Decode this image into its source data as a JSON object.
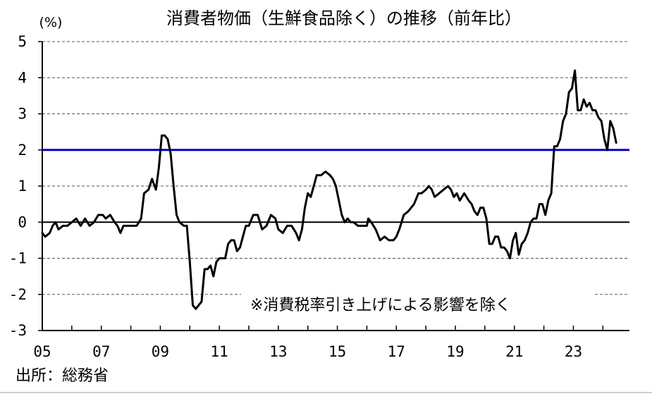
{
  "chart_data": {
    "type": "line",
    "title": "消費者物価（生鮮食品除く）の推移（前年比）",
    "unit_label": "(%)",
    "note": "※消費税率引き上げによる影響を除く",
    "source": "出所：総務省",
    "ylim": [
      -3,
      5
    ],
    "y_ticks": [
      5,
      4,
      3,
      2,
      1,
      0,
      -1,
      -2,
      -3
    ],
    "x_range": [
      2005.0,
      2024.9
    ],
    "x_ticks": [
      {
        "label": "05",
        "value": 2005
      },
      {
        "label": "07",
        "value": 2007
      },
      {
        "label": "09",
        "value": 2009
      },
      {
        "label": "11",
        "value": 2011
      },
      {
        "label": "13",
        "value": 2013
      },
      {
        "label": "15",
        "value": 2015
      },
      {
        "label": "17",
        "value": 2017
      },
      {
        "label": "19",
        "value": 2019
      },
      {
        "label": "21",
        "value": 2021
      },
      {
        "label": "23",
        "value": 2023
      }
    ],
    "grid": "horizontal dashed",
    "zero_line_color": "#000000",
    "target_line": {
      "value": 2,
      "color": "#0000cc"
    },
    "series": [
      {
        "color": "#000000",
        "points": [
          [
            2005.0,
            -0.3
          ],
          [
            2005.1,
            -0.4
          ],
          [
            2005.25,
            -0.3
          ],
          [
            2005.35,
            -0.1
          ],
          [
            2005.45,
            0.0
          ],
          [
            2005.55,
            -0.2
          ],
          [
            2005.7,
            -0.1
          ],
          [
            2005.85,
            -0.1
          ],
          [
            2006.0,
            0.0
          ],
          [
            2006.15,
            0.1
          ],
          [
            2006.3,
            -0.1
          ],
          [
            2006.45,
            0.1
          ],
          [
            2006.6,
            -0.1
          ],
          [
            2006.75,
            0.0
          ],
          [
            2006.9,
            0.2
          ],
          [
            2007.05,
            0.2
          ],
          [
            2007.15,
            0.1
          ],
          [
            2007.3,
            0.2
          ],
          [
            2007.45,
            0.0
          ],
          [
            2007.55,
            -0.1
          ],
          [
            2007.65,
            -0.3
          ],
          [
            2007.75,
            -0.1
          ],
          [
            2007.9,
            -0.1
          ],
          [
            2008.05,
            -0.1
          ],
          [
            2008.2,
            -0.1
          ],
          [
            2008.35,
            0.1
          ],
          [
            2008.45,
            0.8
          ],
          [
            2008.6,
            0.9
          ],
          [
            2008.72,
            1.2
          ],
          [
            2008.85,
            0.9
          ],
          [
            2008.95,
            1.5
          ],
          [
            2009.05,
            2.4
          ],
          [
            2009.15,
            2.4
          ],
          [
            2009.25,
            2.3
          ],
          [
            2009.35,
            1.9
          ],
          [
            2009.45,
            1.0
          ],
          [
            2009.55,
            0.2
          ],
          [
            2009.65,
            0.0
          ],
          [
            2009.8,
            -0.1
          ],
          [
            2009.9,
            -0.1
          ],
          [
            2010.0,
            -1.1
          ],
          [
            2010.1,
            -2.3
          ],
          [
            2010.2,
            -2.4
          ],
          [
            2010.3,
            -2.3
          ],
          [
            2010.4,
            -2.2
          ],
          [
            2010.5,
            -1.3
          ],
          [
            2010.6,
            -1.3
          ],
          [
            2010.7,
            -1.2
          ],
          [
            2010.8,
            -1.5
          ],
          [
            2010.9,
            -1.1
          ],
          [
            2011.0,
            -1.0
          ],
          [
            2011.1,
            -1.0
          ],
          [
            2011.2,
            -1.0
          ],
          [
            2011.3,
            -0.6
          ],
          [
            2011.4,
            -0.5
          ],
          [
            2011.5,
            -0.5
          ],
          [
            2011.6,
            -0.8
          ],
          [
            2011.7,
            -0.7
          ],
          [
            2011.8,
            -0.4
          ],
          [
            2011.9,
            -0.1
          ],
          [
            2012.0,
            -0.1
          ],
          [
            2012.15,
            0.2
          ],
          [
            2012.3,
            0.2
          ],
          [
            2012.45,
            -0.2
          ],
          [
            2012.6,
            -0.1
          ],
          [
            2012.75,
            0.2
          ],
          [
            2012.9,
            0.1
          ],
          [
            2013.0,
            -0.2
          ],
          [
            2013.15,
            -0.3
          ],
          [
            2013.3,
            -0.1
          ],
          [
            2013.45,
            -0.1
          ],
          [
            2013.6,
            -0.3
          ],
          [
            2013.7,
            -0.5
          ],
          [
            2013.8,
            -0.2
          ],
          [
            2013.9,
            0.4
          ],
          [
            2014.0,
            0.8
          ],
          [
            2014.1,
            0.7
          ],
          [
            2014.2,
            1.0
          ],
          [
            2014.3,
            1.3
          ],
          [
            2014.45,
            1.3
          ],
          [
            2014.6,
            1.4
          ],
          [
            2014.75,
            1.3
          ],
          [
            2014.85,
            1.2
          ],
          [
            2014.95,
            1.0
          ],
          [
            2015.05,
            0.6
          ],
          [
            2015.15,
            0.2
          ],
          [
            2015.25,
            0.0
          ],
          [
            2015.35,
            0.1
          ],
          [
            2015.45,
            0.0
          ],
          [
            2015.55,
            0.0
          ],
          [
            2015.7,
            -0.1
          ],
          [
            2015.85,
            -0.1
          ],
          [
            2016.0,
            -0.1
          ],
          [
            2016.05,
            0.1
          ],
          [
            2016.15,
            0.0
          ],
          [
            2016.3,
            -0.2
          ],
          [
            2016.45,
            -0.5
          ],
          [
            2016.6,
            -0.4
          ],
          [
            2016.75,
            -0.5
          ],
          [
            2016.9,
            -0.5
          ],
          [
            2017.0,
            -0.4
          ],
          [
            2017.1,
            -0.2
          ],
          [
            2017.25,
            0.2
          ],
          [
            2017.4,
            0.3
          ],
          [
            2017.5,
            0.4
          ],
          [
            2017.6,
            0.5
          ],
          [
            2017.75,
            0.8
          ],
          [
            2017.85,
            0.8
          ],
          [
            2018.0,
            0.9
          ],
          [
            2018.1,
            1.0
          ],
          [
            2018.2,
            0.9
          ],
          [
            2018.3,
            0.7
          ],
          [
            2018.45,
            0.8
          ],
          [
            2018.6,
            0.9
          ],
          [
            2018.75,
            1.0
          ],
          [
            2018.85,
            0.9
          ],
          [
            2018.95,
            0.7
          ],
          [
            2019.05,
            0.8
          ],
          [
            2019.15,
            0.6
          ],
          [
            2019.3,
            0.8
          ],
          [
            2019.45,
            0.6
          ],
          [
            2019.55,
            0.5
          ],
          [
            2019.65,
            0.3
          ],
          [
            2019.75,
            0.2
          ],
          [
            2019.85,
            0.4
          ],
          [
            2019.95,
            0.4
          ],
          [
            2020.05,
            0.1
          ],
          [
            2020.15,
            -0.6
          ],
          [
            2020.25,
            -0.6
          ],
          [
            2020.35,
            -0.4
          ],
          [
            2020.45,
            -0.4
          ],
          [
            2020.55,
            -0.7
          ],
          [
            2020.65,
            -0.7
          ],
          [
            2020.75,
            -0.8
          ],
          [
            2020.85,
            -1.0
          ],
          [
            2020.95,
            -0.5
          ],
          [
            2021.05,
            -0.3
          ],
          [
            2021.15,
            -0.9
          ],
          [
            2021.25,
            -0.6
          ],
          [
            2021.35,
            -0.5
          ],
          [
            2021.45,
            -0.3
          ],
          [
            2021.55,
            0.0
          ],
          [
            2021.65,
            0.1
          ],
          [
            2021.75,
            0.1
          ],
          [
            2021.85,
            0.5
          ],
          [
            2021.95,
            0.5
          ],
          [
            2022.05,
            0.2
          ],
          [
            2022.15,
            0.6
          ],
          [
            2022.25,
            0.8
          ],
          [
            2022.35,
            2.1
          ],
          [
            2022.45,
            2.1
          ],
          [
            2022.55,
            2.3
          ],
          [
            2022.65,
            2.8
          ],
          [
            2022.75,
            3.0
          ],
          [
            2022.85,
            3.6
          ],
          [
            2022.95,
            3.7
          ],
          [
            2023.05,
            4.2
          ],
          [
            2023.15,
            3.1
          ],
          [
            2023.25,
            3.1
          ],
          [
            2023.35,
            3.4
          ],
          [
            2023.45,
            3.2
          ],
          [
            2023.55,
            3.3
          ],
          [
            2023.65,
            3.1
          ],
          [
            2023.75,
            3.1
          ],
          [
            2023.85,
            2.9
          ],
          [
            2023.95,
            2.8
          ],
          [
            2024.05,
            2.3
          ],
          [
            2024.15,
            2.0
          ],
          [
            2024.25,
            2.8
          ],
          [
            2024.35,
            2.6
          ],
          [
            2024.45,
            2.2
          ]
        ]
      }
    ]
  }
}
